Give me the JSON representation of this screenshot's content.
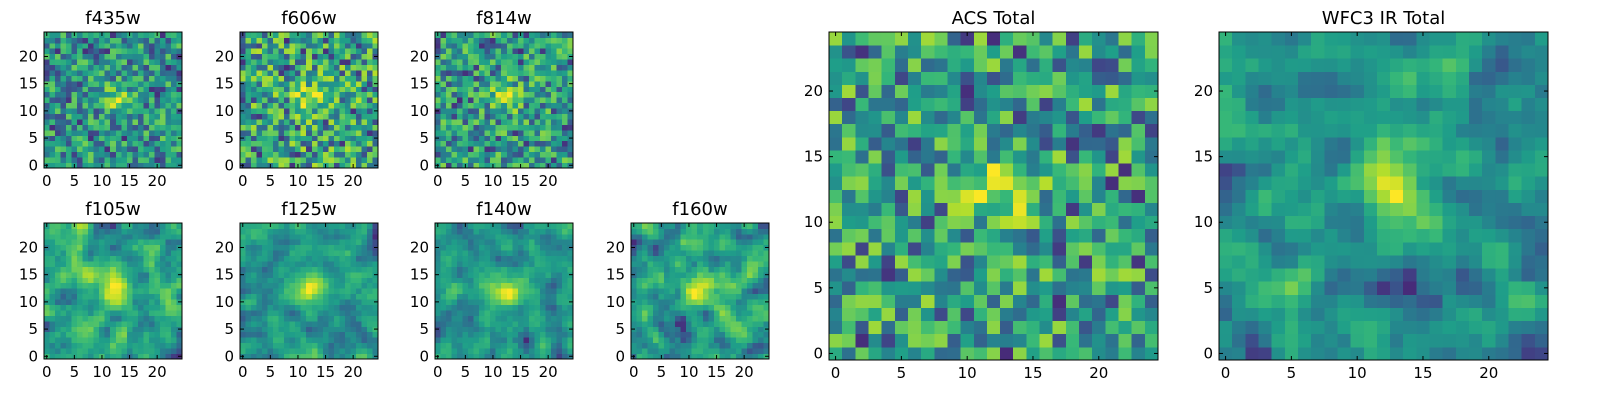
{
  "chart_data": [
    {
      "type": "heatmap",
      "title": "f435w",
      "size": 25,
      "seed": 11,
      "xticks": [
        0,
        5,
        10,
        15,
        20
      ],
      "yticks": [
        0,
        5,
        10,
        15,
        20
      ],
      "xlim": [
        0,
        25
      ],
      "ylim": [
        0,
        25
      ],
      "colormap": "viridis",
      "smooth": 0
    },
    {
      "type": "heatmap",
      "title": "f606w",
      "size": 25,
      "seed": 23,
      "xticks": [
        0,
        5,
        10,
        15,
        20
      ],
      "yticks": [
        0,
        5,
        10,
        15,
        20
      ],
      "xlim": [
        0,
        25
      ],
      "ylim": [
        0,
        25
      ],
      "colormap": "viridis",
      "smooth": 0
    },
    {
      "type": "heatmap",
      "title": "f814w",
      "size": 25,
      "seed": 37,
      "xticks": [
        0,
        5,
        10,
        15,
        20
      ],
      "yticks": [
        0,
        5,
        10,
        15,
        20
      ],
      "xlim": [
        0,
        25
      ],
      "ylim": [
        0,
        25
      ],
      "colormap": "viridis",
      "smooth": 0
    },
    {
      "type": "heatmap",
      "title": "f105w",
      "size": 25,
      "seed": 41,
      "xticks": [
        0,
        5,
        10,
        15,
        20
      ],
      "yticks": [
        0,
        5,
        10,
        15,
        20
      ],
      "xlim": [
        0,
        25
      ],
      "ylim": [
        0,
        25
      ],
      "colormap": "viridis",
      "smooth": 1
    },
    {
      "type": "heatmap",
      "title": "f125w",
      "size": 25,
      "seed": 53,
      "xticks": [
        0,
        5,
        10,
        15,
        20
      ],
      "yticks": [
        0,
        5,
        10,
        15,
        20
      ],
      "xlim": [
        0,
        25
      ],
      "ylim": [
        0,
        25
      ],
      "colormap": "viridis",
      "smooth": 1
    },
    {
      "type": "heatmap",
      "title": "f140w",
      "size": 25,
      "seed": 67,
      "xticks": [
        0,
        5,
        10,
        15,
        20
      ],
      "yticks": [
        0,
        5,
        10,
        15,
        20
      ],
      "xlim": [
        0,
        25
      ],
      "ylim": [
        0,
        25
      ],
      "colormap": "viridis",
      "smooth": 1
    },
    {
      "type": "heatmap",
      "title": "f160w",
      "size": 25,
      "seed": 79,
      "xticks": [
        0,
        5,
        10,
        15,
        20
      ],
      "yticks": [
        0,
        5,
        10,
        15,
        20
      ],
      "xlim": [
        0,
        25
      ],
      "ylim": [
        0,
        25
      ],
      "colormap": "viridis",
      "smooth": 1
    },
    {
      "type": "heatmap",
      "title": "ACS Total",
      "size": 25,
      "seed": 97,
      "xticks": [
        0,
        5,
        10,
        15,
        20
      ],
      "yticks": [
        0,
        5,
        10,
        15,
        20
      ],
      "xlim": [
        0,
        25
      ],
      "ylim": [
        0,
        25
      ],
      "colormap": "viridis",
      "smooth": 0
    },
    {
      "type": "heatmap",
      "title": "WFC3 IR Total",
      "size": 25,
      "seed": 131,
      "xticks": [
        0,
        5,
        10,
        15,
        20
      ],
      "yticks": [
        0,
        5,
        10,
        15,
        20
      ],
      "xlim": [
        0,
        25
      ],
      "ylim": [
        0,
        25
      ],
      "colormap": "viridis",
      "smooth": 1
    }
  ]
}
